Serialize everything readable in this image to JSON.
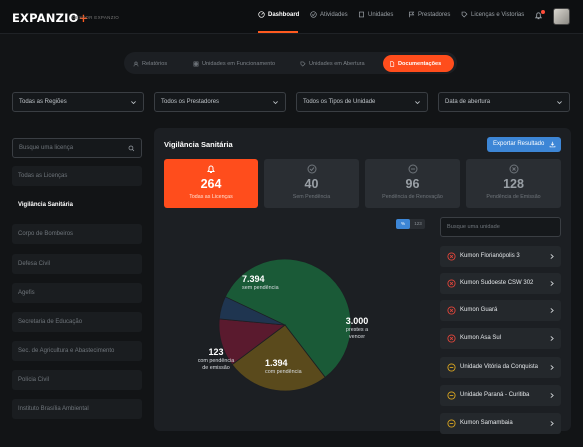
{
  "app": {
    "logo_text": "EXPANZIO",
    "logo_plus": "+",
    "logo_sub": "GESTOR EXPANZIO"
  },
  "nav": [
    {
      "label": "Dashboard",
      "icon": "dashboard-icon",
      "active": true
    },
    {
      "label": "Atividades",
      "icon": "check-circle-icon",
      "active": false
    },
    {
      "label": "Unidades",
      "icon": "building-icon",
      "active": false
    },
    {
      "label": "Prestadores",
      "icon": "flag-icon",
      "active": false
    },
    {
      "label": "Licenças e Vistorias",
      "icon": "tag-icon",
      "active": false
    }
  ],
  "tabs": [
    {
      "label": "Relatórios",
      "icon": "users-icon",
      "active": false
    },
    {
      "label": "Unidades em Funcionamento",
      "icon": "grid-icon",
      "active": false
    },
    {
      "label": "Unidades em Abertura",
      "icon": "tag-icon",
      "active": false
    },
    {
      "label": "Documentações",
      "icon": "document-icon",
      "active": true
    }
  ],
  "filters": [
    {
      "value": "Todas as Regiões"
    },
    {
      "value": "Todos os Prestadores"
    },
    {
      "value": "Todos os Tipos de Unidade"
    },
    {
      "value": "Data de abertura"
    }
  ],
  "sidebar": {
    "search_placeholder": "Busque uma licença",
    "items": [
      {
        "label": "Todas as Licenças",
        "active": false
      },
      {
        "label": "Vigilância Sanitária",
        "active": true
      },
      {
        "label": "Corpo de Bombeiros",
        "active": false
      },
      {
        "label": "Defesa Civil",
        "active": false
      },
      {
        "label": "Agefis",
        "active": false
      },
      {
        "label": "Secretaria de Educação",
        "active": false
      },
      {
        "label": "Sec. de Agricultura e Abastecimento",
        "active": false
      },
      {
        "label": "Polícia Civil",
        "active": false
      },
      {
        "label": "Instituto Brasília Ambiental",
        "active": false
      }
    ]
  },
  "main": {
    "title": "Vigilância Sanitária",
    "export_label": "Exportar Resultado",
    "cards": [
      {
        "value": "264",
        "label": "Todas as Licenças",
        "icon": "bell-icon",
        "active": true
      },
      {
        "value": "40",
        "label": "Sem Pendência",
        "icon": "check-circle-icon",
        "active": false
      },
      {
        "value": "96",
        "label": "Pendência de Renovação",
        "icon": "minus-circle-icon",
        "active": false
      },
      {
        "value": "128",
        "label": "Pendência de Emissão",
        "icon": "x-circle-icon",
        "active": false
      }
    ],
    "toggle": {
      "on": "%",
      "off": "123"
    },
    "unit_search_placeholder": "Busque uma unidade",
    "units": [
      {
        "name": "Kumon Florianópolis 3",
        "status": "x"
      },
      {
        "name": "Kumon Sudoeste CSW 302",
        "status": "x"
      },
      {
        "name": "Kumon Guará",
        "status": "x"
      },
      {
        "name": "Kumon Asa Sul",
        "status": "x"
      },
      {
        "name": "Unidade Vitória da Conquista",
        "status": "minus"
      },
      {
        "name": "Unidade Paraná - Curitiba",
        "status": "minus"
      },
      {
        "name": "Kumon Samambaia",
        "status": "minus"
      }
    ]
  },
  "colors": {
    "accent": "#ff4d1c",
    "blue": "#3d86d6",
    "pie": [
      "#1a5a37",
      "#5a4a1c",
      "#5a1a2e",
      "#1f3550"
    ],
    "status_x": "#e0453a",
    "status_minus": "#d9a520"
  },
  "chart_data": {
    "type": "pie",
    "categories": [
      "sem pendência",
      "prestes a vencer",
      "com pendência",
      "com pendência de emissão"
    ],
    "values": [
      7394,
      3000,
      1394,
      123
    ],
    "labels": [
      {
        "value": "7.394",
        "text": "sem pendência"
      },
      {
        "value": "3.000",
        "text": "prestes a vencer"
      },
      {
        "value": "1.394",
        "text": "com pendência"
      },
      {
        "value": "123",
        "text": "com pendência de emissão"
      }
    ]
  }
}
